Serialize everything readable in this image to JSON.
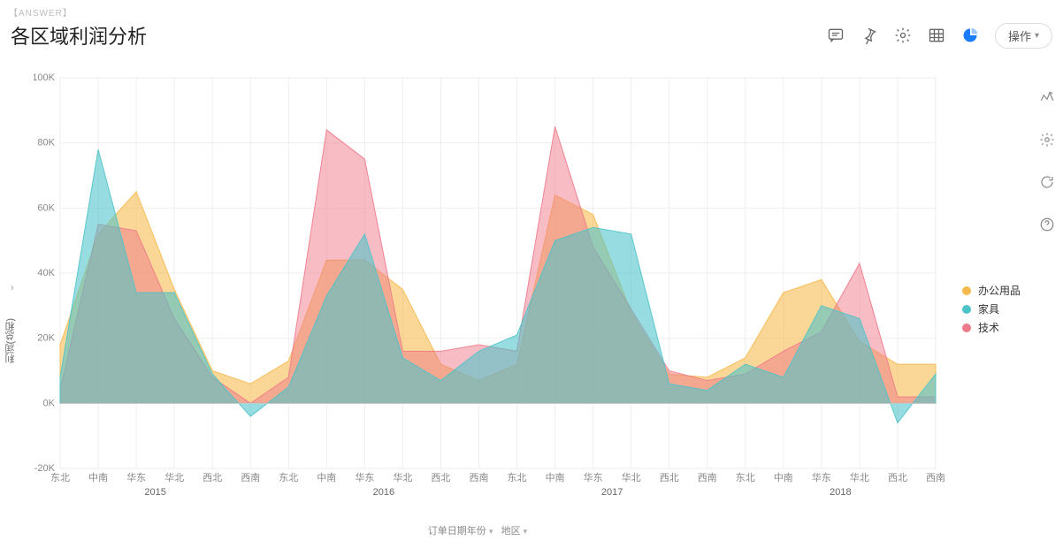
{
  "answer_tag": "【ANSWER】",
  "title": "各区域利润分析",
  "toolbar": {
    "ops_label": "操作"
  },
  "legend": {
    "items": [
      {
        "label": "办公用品",
        "color": "#f6b94c"
      },
      {
        "label": "家具",
        "color": "#4cc3c9"
      },
      {
        "label": "技术",
        "color": "#ef7a89"
      }
    ]
  },
  "chart": {
    "type": "area",
    "ylim": [
      -20,
      100
    ],
    "ytick_step": 20,
    "y_unit": "K",
    "years": [
      "2015",
      "2016",
      "2017",
      "2018"
    ],
    "regions": [
      "东北",
      "中南",
      "华东",
      "华北",
      "西北",
      "西南"
    ],
    "series": {
      "office": {
        "color": "#f6b94c",
        "opacity": 0.58,
        "values": [
          18,
          52,
          65,
          35,
          10,
          6,
          13,
          44,
          44,
          35,
          12,
          7,
          12,
          64,
          58,
          28,
          9,
          8,
          14,
          34,
          38,
          19,
          12,
          12
        ]
      },
      "furniture": {
        "color": "#4cc3c9",
        "opacity": 0.58,
        "values": [
          8,
          78,
          34,
          34,
          9,
          -4,
          5,
          33,
          52,
          14,
          7,
          16,
          21,
          50,
          54,
          52,
          6,
          4,
          12,
          8,
          30,
          26,
          -6,
          9
        ]
      },
      "tech": {
        "color": "#ef7a89",
        "opacity": 0.5,
        "values": [
          4,
          55,
          53,
          26,
          8,
          0,
          8,
          84,
          75,
          16,
          16,
          18,
          16,
          85,
          48,
          29,
          10,
          7,
          9,
          16,
          22,
          43,
          2,
          2
        ]
      }
    },
    "y_label": "利润(总和)",
    "x_label_1": "订单日期年份",
    "x_label_2": "地区",
    "grid_color": "#eeeeee",
    "background": "#ffffff"
  }
}
